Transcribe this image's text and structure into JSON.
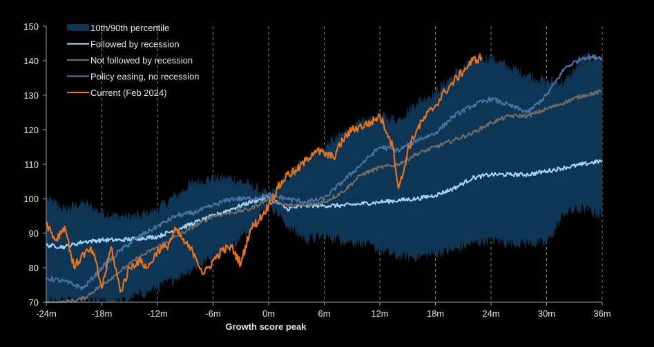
{
  "chart_data": {
    "type": "line",
    "title": "",
    "xlabel": "Growth score peak",
    "ylabel": "",
    "xlim": [
      -24,
      36
    ],
    "ylim": [
      70,
      150
    ],
    "x_ticks": [
      -24,
      -18,
      -12,
      -6,
      0,
      6,
      12,
      18,
      24,
      30,
      36
    ],
    "x_tick_labels": [
      "-24m",
      "-18m",
      "-12m",
      "-6m",
      "0m",
      "6m",
      "12m",
      "18m",
      "24m",
      "30m",
      "36m"
    ],
    "y_ticks": [
      70,
      80,
      90,
      100,
      110,
      120,
      130,
      140,
      150
    ],
    "y_tick_labels": [
      "70",
      "80",
      "90",
      "100",
      "110",
      "120",
      "130",
      "140",
      "150"
    ],
    "grid": "vertical dashed at x ticks",
    "legend_position": "top-left",
    "band": {
      "name": "10th/90th percentile",
      "color": "#0f3554",
      "x": [
        -24,
        -22,
        -20,
        -18,
        -16,
        -14,
        -12,
        -10,
        -8,
        -6,
        -4,
        -2,
        0,
        2,
        4,
        6,
        8,
        10,
        12,
        14,
        16,
        18,
        20,
        22,
        24,
        26,
        28,
        30,
        32,
        34,
        36
      ],
      "upper": [
        100,
        97,
        99,
        96,
        95,
        95,
        97,
        101,
        105,
        106,
        106,
        104,
        101,
        106,
        112,
        115,
        119,
        122,
        124,
        123,
        128,
        131,
        136,
        140,
        141,
        138,
        136,
        134,
        134,
        141,
        141
      ],
      "lower": [
        70,
        70,
        70,
        70,
        70,
        72,
        74,
        77,
        80,
        83,
        86,
        91,
        99,
        92,
        88,
        89,
        88,
        87,
        85,
        83,
        83,
        84,
        85,
        87,
        88,
        87,
        87,
        87,
        96,
        97,
        95
      ]
    },
    "series": [
      {
        "name": "Followed by recession",
        "color": "#9fd3f5",
        "x": [
          -24,
          -22,
          -20,
          -18,
          -16,
          -14,
          -12,
          -10,
          -8,
          -6,
          -4,
          -2,
          0,
          2,
          4,
          6,
          8,
          10,
          12,
          14,
          16,
          18,
          20,
          22,
          24,
          26,
          28,
          30,
          32,
          34,
          36
        ],
        "values": [
          86.5,
          86,
          87.5,
          88,
          88,
          88.5,
          89,
          91,
          93,
          95,
          97,
          99,
          100.5,
          97,
          98,
          98,
          98,
          98.5,
          99,
          99.5,
          100,
          101,
          103,
          106,
          107,
          107,
          107,
          108,
          109,
          110,
          111
        ]
      },
      {
        "name": "Not followed by recession",
        "color": "#6b6b6b",
        "x": [
          -24,
          -22,
          -20,
          -18,
          -16,
          -14,
          -12,
          -10,
          -8,
          -6,
          -4,
          -2,
          0,
          2,
          4,
          6,
          8,
          10,
          12,
          14,
          16,
          18,
          20,
          22,
          24,
          26,
          28,
          30,
          32,
          34,
          36
        ],
        "values": [
          69,
          70,
          71,
          75,
          79,
          83,
          86,
          89,
          92,
          95,
          96,
          97,
          100,
          98,
          98,
          99,
          102,
          107,
          109,
          110,
          113,
          115,
          117,
          119,
          122,
          124,
          124,
          126,
          128,
          130,
          131
        ]
      },
      {
        "name": "Policy easing, no recession",
        "color": "#4a6fa0",
        "x": [
          -24,
          -22,
          -20,
          -18,
          -16,
          -14,
          -12,
          -10,
          -8,
          -6,
          -4,
          -2,
          0,
          2,
          4,
          6,
          8,
          10,
          12,
          14,
          16,
          18,
          20,
          22,
          24,
          26,
          28,
          30,
          32,
          34,
          36
        ],
        "values": [
          77,
          76,
          74,
          80,
          85,
          89,
          92,
          95,
          96,
          98,
          100,
          100,
          101,
          100,
          99,
          100,
          105,
          110,
          115,
          114,
          117,
          119,
          124,
          127,
          129,
          127,
          125,
          130,
          138,
          141,
          141
        ]
      },
      {
        "name": "Current (Feb 2024)",
        "color": "#e8731c",
        "x": [
          -24,
          -23,
          -22,
          -21,
          -20,
          -19,
          -18,
          -17,
          -16,
          -15,
          -14,
          -13,
          -12,
          -11,
          -10,
          -9,
          -8,
          -7,
          -6,
          -5,
          -4,
          -3,
          -2,
          -1,
          0,
          1,
          2,
          3,
          4,
          5,
          6,
          7,
          8,
          9,
          10,
          11,
          12,
          13,
          13.5,
          14,
          14.5,
          15,
          16,
          17,
          18,
          19,
          20,
          21,
          22,
          23
        ],
        "values": [
          93,
          88,
          92,
          80,
          84,
          85,
          74,
          86,
          73,
          80,
          82,
          80,
          85,
          86,
          91,
          87,
          84,
          78,
          82,
          85,
          86,
          81,
          91,
          94,
          98,
          103,
          107,
          108,
          111,
          114,
          113,
          112,
          117,
          120,
          121,
          122,
          124,
          118,
          114,
          103,
          107,
          114,
          120,
          124,
          127,
          131,
          134,
          137,
          140,
          141
        ]
      }
    ],
    "legend": [
      {
        "label": "10th/90th percentile",
        "kind": "band",
        "color": "#0f3554"
      },
      {
        "label": "Followed by recession",
        "kind": "line",
        "color": "#9fd3f5"
      },
      {
        "label": "Not followed by recession",
        "kind": "line",
        "color": "#6b6b6b"
      },
      {
        "label": "Policy easing, no recession",
        "kind": "line",
        "color": "#4a6fa0"
      },
      {
        "label": "Current (Feb 2024)",
        "kind": "line",
        "color": "#e8731c"
      }
    ]
  }
}
